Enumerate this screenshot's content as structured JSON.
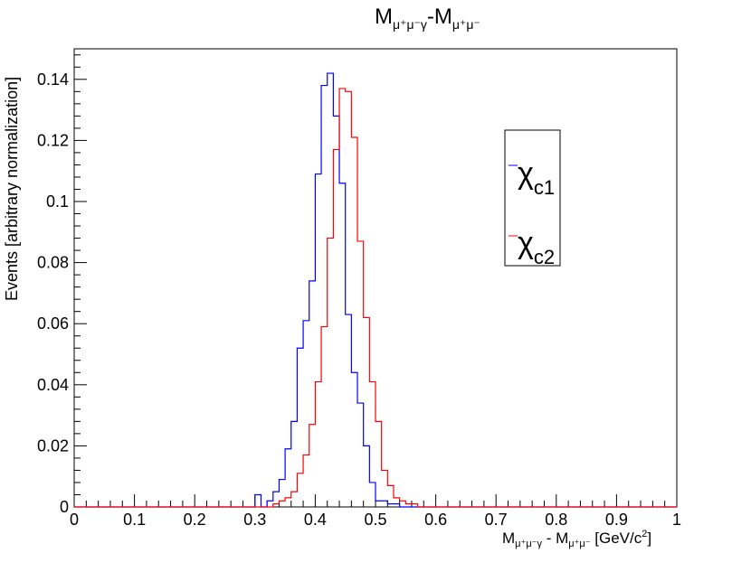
{
  "chart_data": {
    "type": "histogram-step",
    "title": {
      "main": "M",
      "sub1": "μ⁺μ⁻γ",
      "mid": "-M",
      "sub2": "μ⁺μ⁻"
    },
    "xlabel": {
      "p1": "M",
      "s1": "μ⁺μ⁻γ",
      "p2": " - M",
      "s2": "μ⁺μ⁻",
      "p3": "  [GeV/c",
      "sup": "2",
      "p4": "]"
    },
    "ylabel": "Events [arbitrary normalization]",
    "xlim": [
      0,
      1
    ],
    "ylim": [
      0,
      0.15
    ],
    "xticks": [
      "0",
      "0.1",
      "0.2",
      "0.3",
      "0.4",
      "0.5",
      "0.6",
      "0.7",
      "0.8",
      "0.9",
      "1"
    ],
    "xtick_values": [
      0,
      0.1,
      0.2,
      0.3,
      0.4,
      0.5,
      0.6,
      0.7,
      0.8,
      0.9,
      1.0
    ],
    "yticks": [
      "0",
      "0.02",
      "0.04",
      "0.06",
      "0.08",
      "0.1",
      "0.12",
      "0.14"
    ],
    "ytick_values": [
      0,
      0.02,
      0.04,
      0.06,
      0.08,
      0.1,
      0.12,
      0.14
    ],
    "bin_width": 0.01,
    "bins_start": 0,
    "series": [
      {
        "name": "χ_c1",
        "label_main": "χ",
        "label_sub": "c1",
        "color": "#0000ff",
        "values": [
          0,
          0,
          0,
          0,
          0,
          0,
          0,
          0,
          0,
          0,
          0,
          0,
          0,
          0,
          0,
          0,
          0,
          0,
          0,
          0,
          0,
          0,
          0,
          0,
          0,
          0,
          0,
          0,
          0,
          0,
          0.004,
          0,
          0.002,
          0.005,
          0.009,
          0.019,
          0.028,
          0.052,
          0.061,
          0.074,
          0.109,
          0.138,
          0.142,
          0.128,
          0.106,
          0.063,
          0.044,
          0.034,
          0.02,
          0.008,
          0.002,
          0.002,
          0.001,
          0.001,
          0,
          0,
          0,
          0,
          0,
          0,
          0,
          0,
          0,
          0,
          0,
          0,
          0,
          0,
          0,
          0,
          0,
          0,
          0,
          0,
          0,
          0,
          0,
          0,
          0,
          0,
          0,
          0,
          0,
          0,
          0,
          0,
          0,
          0,
          0,
          0,
          0,
          0,
          0,
          0,
          0,
          0,
          0,
          0,
          0,
          0
        ]
      },
      {
        "name": "χ_c2",
        "label_main": "χ",
        "label_sub": "c2",
        "color": "#ff0000",
        "values": [
          0,
          0,
          0,
          0,
          0,
          0,
          0,
          0,
          0,
          0,
          0,
          0,
          0,
          0,
          0,
          0,
          0,
          0,
          0,
          0,
          0,
          0,
          0,
          0,
          0,
          0,
          0,
          0,
          0,
          0,
          0,
          0,
          0,
          0.001,
          0.002,
          0.003,
          0.005,
          0.011,
          0.017,
          0.027,
          0.041,
          0.059,
          0.088,
          0.117,
          0.137,
          0.136,
          0.121,
          0.087,
          0.062,
          0.041,
          0.028,
          0.012,
          0.007,
          0.003,
          0.002,
          0.001,
          0.001,
          0,
          0,
          0,
          0,
          0,
          0,
          0,
          0,
          0,
          0,
          0,
          0,
          0,
          0,
          0,
          0,
          0,
          0,
          0,
          0,
          0,
          0,
          0,
          0,
          0,
          0,
          0,
          0,
          0,
          0,
          0,
          0,
          0,
          0,
          0,
          0,
          0,
          0,
          0,
          0,
          0,
          0,
          0
        ]
      }
    ],
    "legend_position": "right"
  }
}
